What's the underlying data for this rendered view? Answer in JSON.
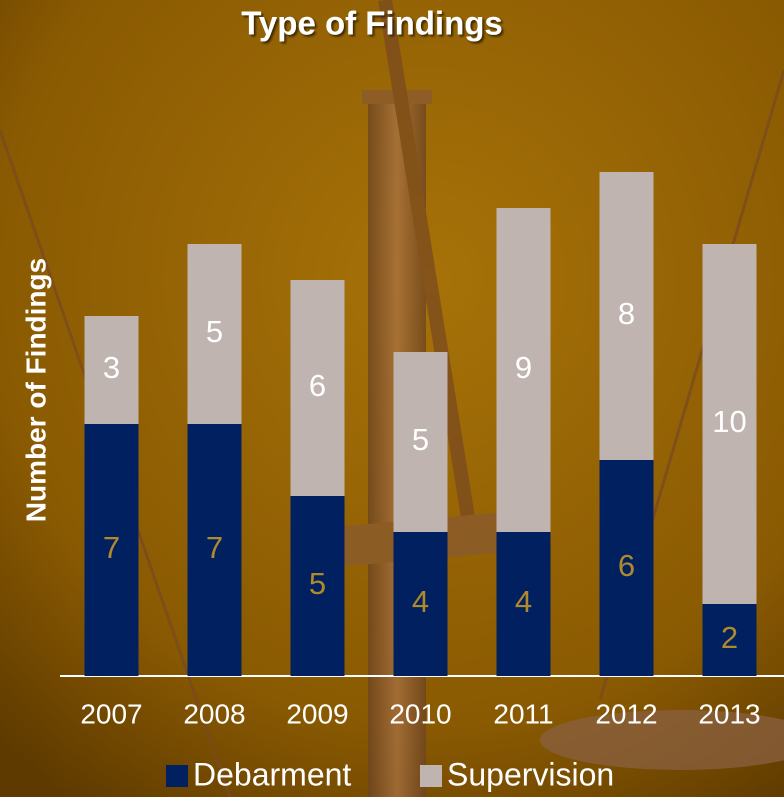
{
  "chart_data": {
    "type": "stacked_bar",
    "title": "Type of Findings",
    "y_label": "Number of Findings",
    "categories": [
      "2007",
      "2008",
      "2009",
      "2010",
      "2011",
      "2012",
      "2013"
    ],
    "series": [
      {
        "name": "Debarment",
        "color": "#002060",
        "values": [
          7,
          7,
          5,
          4,
          4,
          6,
          2
        ]
      },
      {
        "name": "Supervision",
        "color": "#c0b4b0",
        "values": [
          3,
          5,
          6,
          5,
          9,
          8,
          10
        ]
      }
    ],
    "legend": "bottom"
  }
}
